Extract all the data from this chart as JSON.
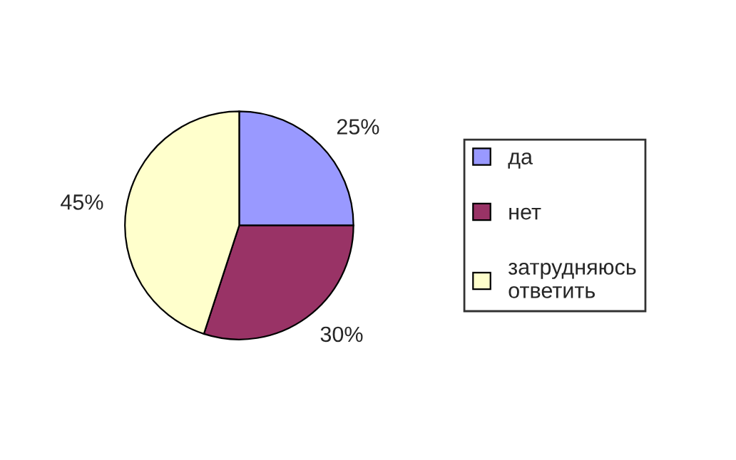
{
  "chart_data": {
    "type": "pie",
    "categories": [
      "да",
      "нет",
      "затрудняюсь ответить"
    ],
    "values": [
      25,
      30,
      45
    ],
    "value_labels": [
      "25%",
      "30%",
      "45%"
    ],
    "colors": [
      "#9999ff",
      "#993366",
      "#ffffcc"
    ],
    "legend": "right"
  }
}
